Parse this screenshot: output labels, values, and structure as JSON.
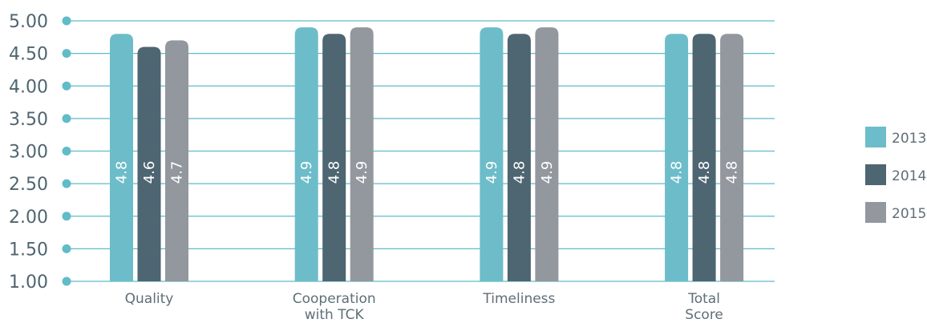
{
  "chart_data": {
    "type": "bar",
    "title": "",
    "xlabel": "",
    "ylabel": "",
    "categories": [
      [
        "Quality"
      ],
      [
        "Cooperation",
        "with TCK"
      ],
      [
        "Timeliness"
      ],
      [
        "Total",
        "Score"
      ]
    ],
    "series": [
      {
        "name": "2013",
        "color": "#6dbcc9",
        "values": [
          4.8,
          4.9,
          4.9,
          4.8
        ]
      },
      {
        "name": "2014",
        "color": "#4e6572",
        "values": [
          4.6,
          4.8,
          4.8,
          4.8
        ]
      },
      {
        "name": "2015",
        "color": "#93979e",
        "values": [
          4.7,
          4.9,
          4.9,
          4.8
        ]
      }
    ],
    "ylim": [
      1.0,
      5.0
    ],
    "yticks": [
      "1.00",
      "1.50",
      "2.00",
      "2.50",
      "3.00",
      "3.50",
      "4.00",
      "4.50",
      "5.00"
    ],
    "grid": true,
    "grid_color": "#5fbcc8",
    "legend_position": "right"
  }
}
